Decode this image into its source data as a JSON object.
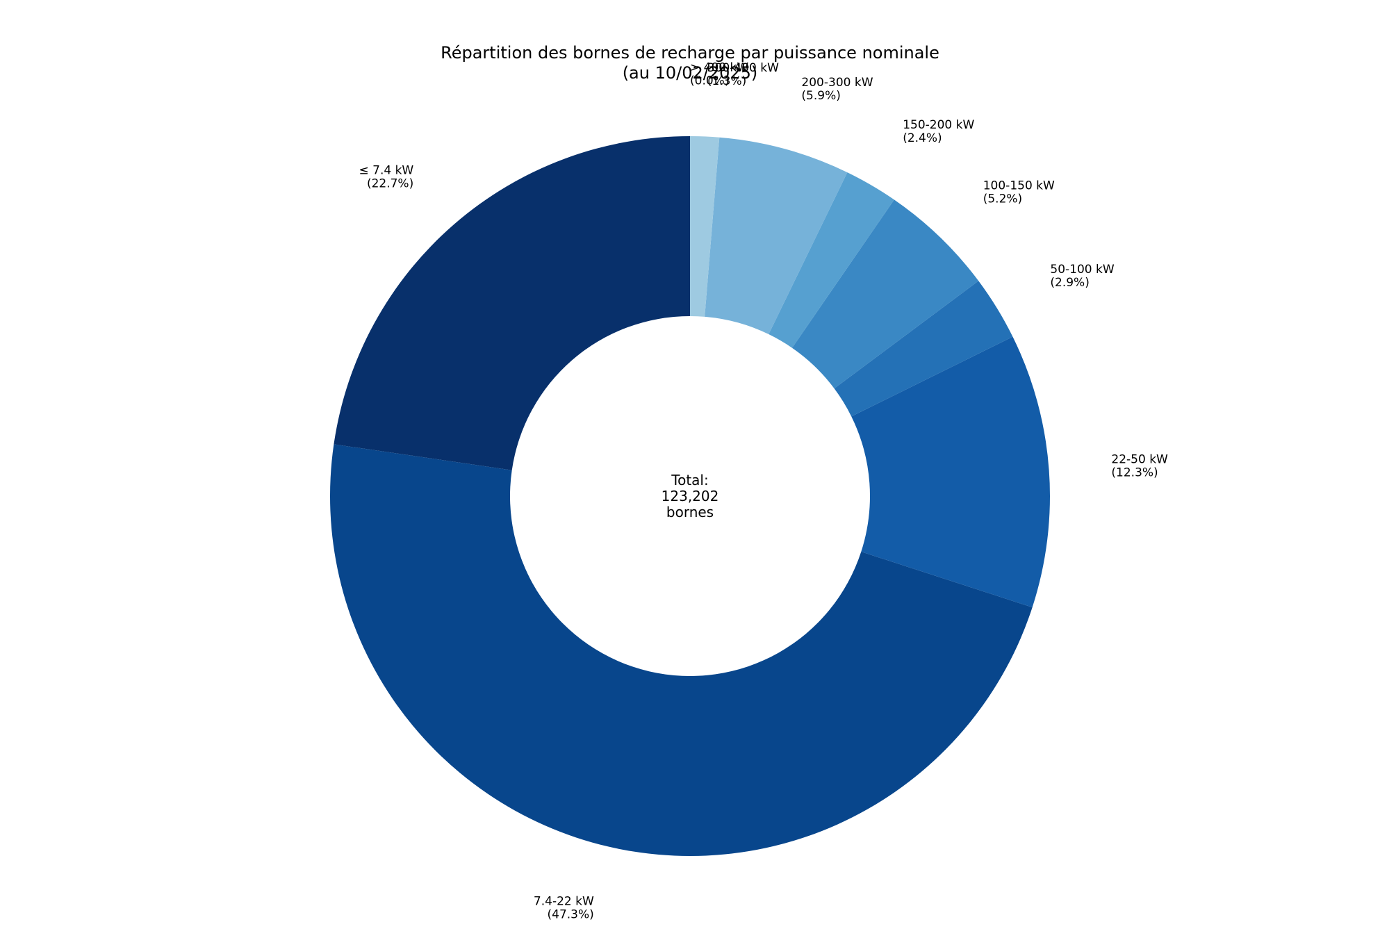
{
  "chart_data": {
    "type": "pie",
    "donut": true,
    "title_lines": [
      "Répartition des bornes de recharge par puissance nominale",
      "(au 10/02/2025)"
    ],
    "center_label_lines": [
      "Total:",
      "123,202",
      "bornes"
    ],
    "total": 123202,
    "start_angle_deg": 90,
    "direction": "counterclockwise",
    "slices": [
      {
        "label": "> 400 kW",
        "percent_label": "(0.0%)",
        "value": 0.0,
        "color": "#c6dbef"
      },
      {
        "label": "≤ 7.4 kW",
        "percent_label": "(22.7%)",
        "value": 22.7,
        "color": "#08306b"
      },
      {
        "label": "7.4-22 kW",
        "percent_label": "(47.3%)",
        "value": 47.3,
        "color": "#08468c"
      },
      {
        "label": "22-50 kW",
        "percent_label": "(12.3%)",
        "value": 12.3,
        "color": "#135ca8"
      },
      {
        "label": "50-100 kW",
        "percent_label": "(2.9%)",
        "value": 2.9,
        "color": "#2471b6"
      },
      {
        "label": "100-150 kW",
        "percent_label": "(5.2%)",
        "value": 5.2,
        "color": "#3a88c4"
      },
      {
        "label": "150-200 kW",
        "percent_label": "(2.4%)",
        "value": 2.4,
        "color": "#56a0d0"
      },
      {
        "label": "200-300 kW",
        "percent_label": "(5.9%)",
        "value": 5.9,
        "color": "#76b2d9"
      },
      {
        "label": "300-400 kW",
        "percent_label": "(1.3%)",
        "value": 1.3,
        "color": "#9ecae1"
      }
    ]
  }
}
